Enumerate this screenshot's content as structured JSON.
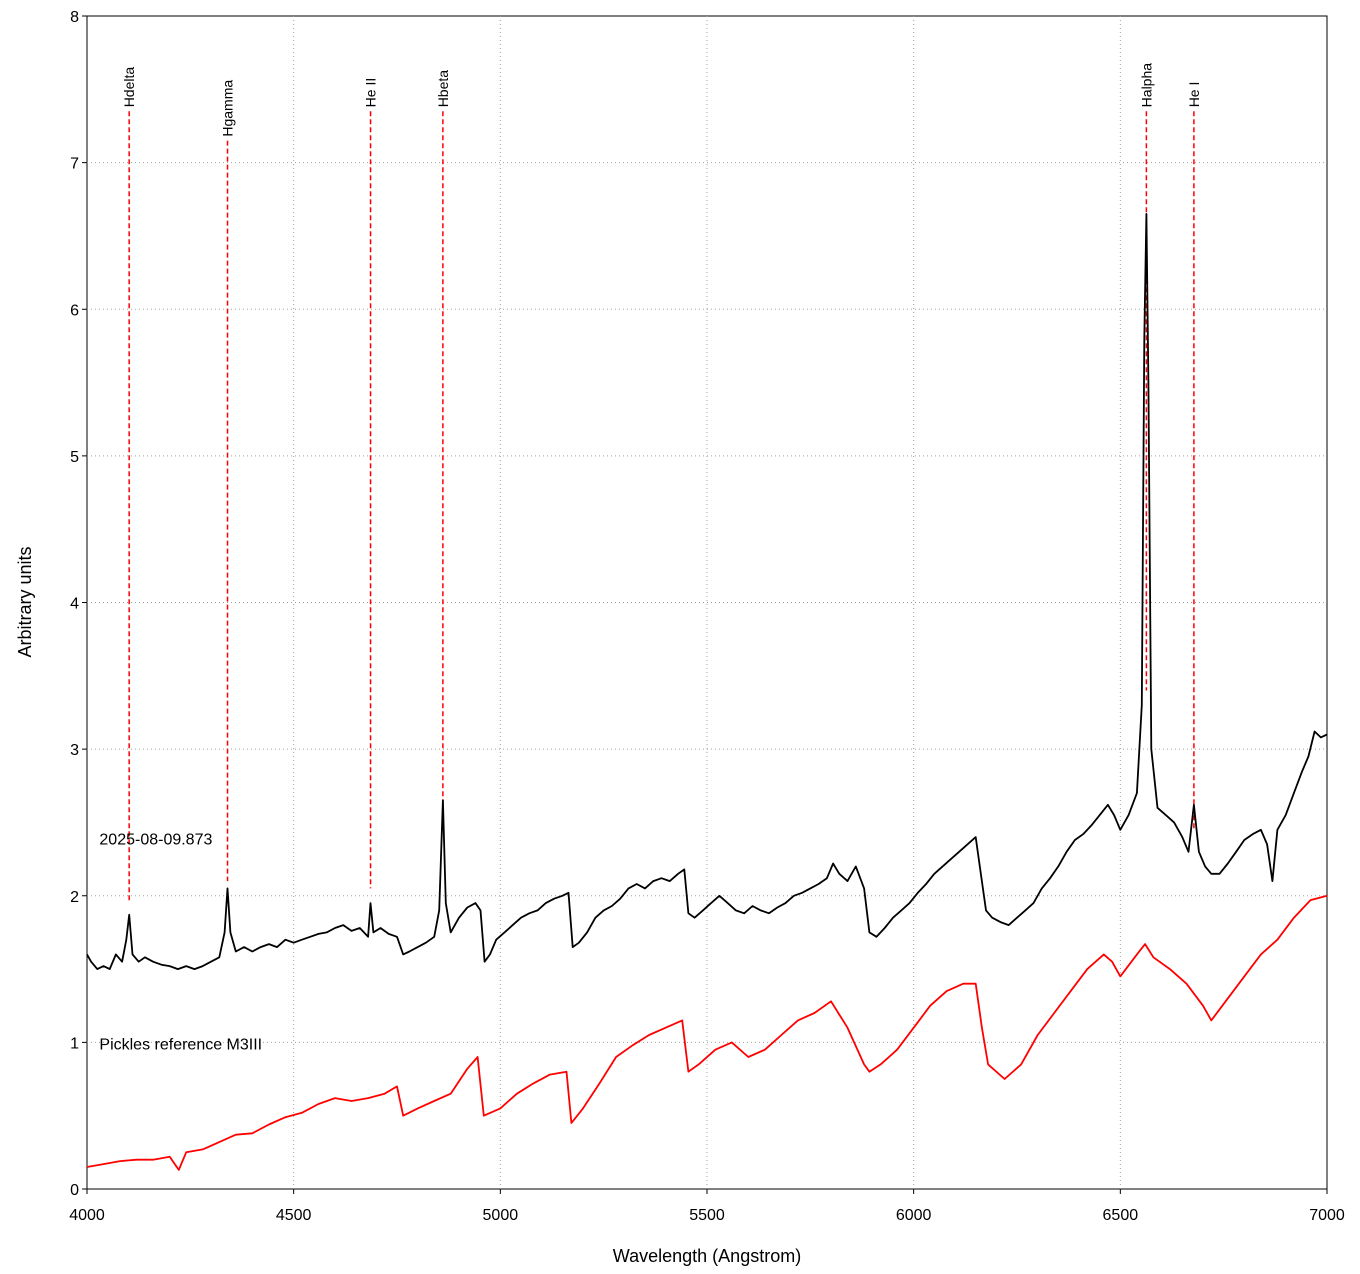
{
  "chart_data": {
    "type": "line",
    "title": "",
    "xlabel": "Wavelength (Angstrom)",
    "ylabel": "Arbitrary units",
    "xlim": [
      4000,
      7000
    ],
    "ylim": [
      0,
      8
    ],
    "x_ticks": [
      4000,
      4500,
      5000,
      5500,
      6000,
      6500,
      7000
    ],
    "y_ticks": [
      0,
      1,
      2,
      3,
      4,
      5,
      6,
      7,
      8
    ],
    "grid": true,
    "colors": {
      "observed": "#000000",
      "reference": "#ff0000",
      "lines": "#ff0000",
      "grid": "#a0a0a0"
    },
    "annotations": [
      {
        "text": "2025-08-09.873",
        "x": 4030,
        "y": 2.35
      },
      {
        "text": "Pickles reference M3III",
        "x": 4030,
        "y": 0.95
      }
    ],
    "spectral_lines": [
      {
        "label": "Hdelta",
        "wavelength": 4102,
        "y_top": 7.35,
        "y_bottom": 1.95
      },
      {
        "label": "Hgamma",
        "wavelength": 4340,
        "y_top": 7.15,
        "y_bottom": 2.1
      },
      {
        "label": "He II",
        "wavelength": 4686,
        "y_top": 7.35,
        "y_bottom": 2.05
      },
      {
        "label": "Hbeta",
        "wavelength": 4861,
        "y_top": 7.35,
        "y_bottom": 2.6
      },
      {
        "label": "Halpha",
        "wavelength": 6563,
        "y_top": 7.35,
        "y_bottom": 3.4
      },
      {
        "label": "He I",
        "wavelength": 6678,
        "y_top": 7.35,
        "y_bottom": 2.45
      }
    ],
    "series": [
      {
        "name": "2025-08-09.873",
        "color": "#000000",
        "points": [
          [
            4000,
            1.6
          ],
          [
            4010,
            1.55
          ],
          [
            4025,
            1.5
          ],
          [
            4040,
            1.52
          ],
          [
            4055,
            1.5
          ],
          [
            4070,
            1.6
          ],
          [
            4085,
            1.55
          ],
          [
            4095,
            1.7
          ],
          [
            4102,
            1.87
          ],
          [
            4110,
            1.6
          ],
          [
            4125,
            1.55
          ],
          [
            4140,
            1.58
          ],
          [
            4160,
            1.55
          ],
          [
            4180,
            1.53
          ],
          [
            4200,
            1.52
          ],
          [
            4220,
            1.5
          ],
          [
            4240,
            1.52
          ],
          [
            4260,
            1.5
          ],
          [
            4280,
            1.52
          ],
          [
            4300,
            1.55
          ],
          [
            4320,
            1.58
          ],
          [
            4333,
            1.75
          ],
          [
            4340,
            2.05
          ],
          [
            4347,
            1.75
          ],
          [
            4360,
            1.62
          ],
          [
            4380,
            1.65
          ],
          [
            4400,
            1.62
          ],
          [
            4420,
            1.65
          ],
          [
            4440,
            1.67
          ],
          [
            4460,
            1.65
          ],
          [
            4480,
            1.7
          ],
          [
            4500,
            1.68
          ],
          [
            4520,
            1.7
          ],
          [
            4540,
            1.72
          ],
          [
            4560,
            1.74
          ],
          [
            4580,
            1.75
          ],
          [
            4600,
            1.78
          ],
          [
            4620,
            1.8
          ],
          [
            4640,
            1.76
          ],
          [
            4660,
            1.78
          ],
          [
            4680,
            1.72
          ],
          [
            4686,
            1.95
          ],
          [
            4693,
            1.75
          ],
          [
            4710,
            1.78
          ],
          [
            4730,
            1.74
          ],
          [
            4750,
            1.72
          ],
          [
            4765,
            1.6
          ],
          [
            4780,
            1.62
          ],
          [
            4800,
            1.65
          ],
          [
            4820,
            1.68
          ],
          [
            4840,
            1.72
          ],
          [
            4852,
            1.9
          ],
          [
            4861,
            2.65
          ],
          [
            4868,
            1.95
          ],
          [
            4880,
            1.75
          ],
          [
            4900,
            1.85
          ],
          [
            4920,
            1.92
          ],
          [
            4940,
            1.95
          ],
          [
            4952,
            1.9
          ],
          [
            4962,
            1.55
          ],
          [
            4975,
            1.6
          ],
          [
            4990,
            1.7
          ],
          [
            5010,
            1.75
          ],
          [
            5030,
            1.8
          ],
          [
            5050,
            1.85
          ],
          [
            5070,
            1.88
          ],
          [
            5090,
            1.9
          ],
          [
            5110,
            1.95
          ],
          [
            5130,
            1.98
          ],
          [
            5150,
            2.0
          ],
          [
            5165,
            2.02
          ],
          [
            5175,
            1.65
          ],
          [
            5190,
            1.68
          ],
          [
            5210,
            1.75
          ],
          [
            5230,
            1.85
          ],
          [
            5250,
            1.9
          ],
          [
            5270,
            1.93
          ],
          [
            5290,
            1.98
          ],
          [
            5310,
            2.05
          ],
          [
            5330,
            2.08
          ],
          [
            5350,
            2.05
          ],
          [
            5370,
            2.1
          ],
          [
            5390,
            2.12
          ],
          [
            5410,
            2.1
          ],
          [
            5430,
            2.15
          ],
          [
            5445,
            2.18
          ],
          [
            5455,
            1.88
          ],
          [
            5470,
            1.85
          ],
          [
            5490,
            1.9
          ],
          [
            5510,
            1.95
          ],
          [
            5530,
            2.0
          ],
          [
            5550,
            1.95
          ],
          [
            5570,
            1.9
          ],
          [
            5590,
            1.88
          ],
          [
            5610,
            1.93
          ],
          [
            5630,
            1.9
          ],
          [
            5650,
            1.88
          ],
          [
            5670,
            1.92
          ],
          [
            5690,
            1.95
          ],
          [
            5710,
            2.0
          ],
          [
            5730,
            2.02
          ],
          [
            5750,
            2.05
          ],
          [
            5770,
            2.08
          ],
          [
            5790,
            2.12
          ],
          [
            5805,
            2.22
          ],
          [
            5820,
            2.15
          ],
          [
            5840,
            2.1
          ],
          [
            5860,
            2.2
          ],
          [
            5880,
            2.05
          ],
          [
            5893,
            1.75
          ],
          [
            5910,
            1.72
          ],
          [
            5930,
            1.78
          ],
          [
            5950,
            1.85
          ],
          [
            5970,
            1.9
          ],
          [
            5990,
            1.95
          ],
          [
            6010,
            2.02
          ],
          [
            6030,
            2.08
          ],
          [
            6050,
            2.15
          ],
          [
            6070,
            2.2
          ],
          [
            6090,
            2.25
          ],
          [
            6110,
            2.3
          ],
          [
            6130,
            2.35
          ],
          [
            6150,
            2.4
          ],
          [
            6160,
            2.2
          ],
          [
            6175,
            1.9
          ],
          [
            6190,
            1.85
          ],
          [
            6210,
            1.82
          ],
          [
            6230,
            1.8
          ],
          [
            6250,
            1.85
          ],
          [
            6270,
            1.9
          ],
          [
            6290,
            1.95
          ],
          [
            6310,
            2.05
          ],
          [
            6330,
            2.12
          ],
          [
            6350,
            2.2
          ],
          [
            6370,
            2.3
          ],
          [
            6390,
            2.38
          ],
          [
            6410,
            2.42
          ],
          [
            6430,
            2.48
          ],
          [
            6450,
            2.55
          ],
          [
            6470,
            2.62
          ],
          [
            6485,
            2.55
          ],
          [
            6500,
            2.45
          ],
          [
            6520,
            2.55
          ],
          [
            6540,
            2.7
          ],
          [
            6552,
            3.3
          ],
          [
            6558,
            5.8
          ],
          [
            6563,
            6.65
          ],
          [
            6568,
            5.5
          ],
          [
            6575,
            3.0
          ],
          [
            6590,
            2.6
          ],
          [
            6610,
            2.55
          ],
          [
            6630,
            2.5
          ],
          [
            6650,
            2.4
          ],
          [
            6665,
            2.3
          ],
          [
            6678,
            2.62
          ],
          [
            6690,
            2.3
          ],
          [
            6705,
            2.2
          ],
          [
            6720,
            2.15
          ],
          [
            6740,
            2.15
          ],
          [
            6760,
            2.22
          ],
          [
            6780,
            2.3
          ],
          [
            6800,
            2.38
          ],
          [
            6820,
            2.42
          ],
          [
            6840,
            2.45
          ],
          [
            6855,
            2.35
          ],
          [
            6868,
            2.1
          ],
          [
            6880,
            2.45
          ],
          [
            6900,
            2.55
          ],
          [
            6920,
            2.7
          ],
          [
            6940,
            2.85
          ],
          [
            6955,
            2.95
          ],
          [
            6970,
            3.12
          ],
          [
            6985,
            3.08
          ],
          [
            7000,
            3.1
          ]
        ]
      },
      {
        "name": "Pickles reference M3III",
        "color": "#ff0000",
        "points": [
          [
            4000,
            0.15
          ],
          [
            4040,
            0.17
          ],
          [
            4080,
            0.19
          ],
          [
            4120,
            0.2
          ],
          [
            4160,
            0.2
          ],
          [
            4200,
            0.22
          ],
          [
            4222,
            0.13
          ],
          [
            4240,
            0.25
          ],
          [
            4280,
            0.27
          ],
          [
            4320,
            0.32
          ],
          [
            4360,
            0.37
          ],
          [
            4400,
            0.38
          ],
          [
            4440,
            0.44
          ],
          [
            4480,
            0.49
          ],
          [
            4520,
            0.52
          ],
          [
            4560,
            0.58
          ],
          [
            4600,
            0.62
          ],
          [
            4640,
            0.6
          ],
          [
            4680,
            0.62
          ],
          [
            4720,
            0.65
          ],
          [
            4750,
            0.7
          ],
          [
            4765,
            0.5
          ],
          [
            4800,
            0.55
          ],
          [
            4840,
            0.6
          ],
          [
            4880,
            0.65
          ],
          [
            4920,
            0.82
          ],
          [
            4945,
            0.9
          ],
          [
            4960,
            0.5
          ],
          [
            5000,
            0.55
          ],
          [
            5040,
            0.65
          ],
          [
            5080,
            0.72
          ],
          [
            5120,
            0.78
          ],
          [
            5160,
            0.8
          ],
          [
            5172,
            0.45
          ],
          [
            5200,
            0.55
          ],
          [
            5240,
            0.72
          ],
          [
            5280,
            0.9
          ],
          [
            5320,
            0.98
          ],
          [
            5360,
            1.05
          ],
          [
            5400,
            1.1
          ],
          [
            5440,
            1.15
          ],
          [
            5455,
            0.8
          ],
          [
            5480,
            0.85
          ],
          [
            5520,
            0.95
          ],
          [
            5560,
            1.0
          ],
          [
            5600,
            0.9
          ],
          [
            5640,
            0.95
          ],
          [
            5680,
            1.05
          ],
          [
            5720,
            1.15
          ],
          [
            5760,
            1.2
          ],
          [
            5800,
            1.28
          ],
          [
            5840,
            1.1
          ],
          [
            5880,
            0.85
          ],
          [
            5893,
            0.8
          ],
          [
            5920,
            0.85
          ],
          [
            5960,
            0.95
          ],
          [
            6000,
            1.1
          ],
          [
            6040,
            1.25
          ],
          [
            6080,
            1.35
          ],
          [
            6120,
            1.4
          ],
          [
            6150,
            1.4
          ],
          [
            6165,
            1.1
          ],
          [
            6180,
            0.85
          ],
          [
            6220,
            0.75
          ],
          [
            6260,
            0.85
          ],
          [
            6300,
            1.05
          ],
          [
            6340,
            1.2
          ],
          [
            6380,
            1.35
          ],
          [
            6420,
            1.5
          ],
          [
            6460,
            1.6
          ],
          [
            6480,
            1.55
          ],
          [
            6500,
            1.45
          ],
          [
            6540,
            1.6
          ],
          [
            6560,
            1.67
          ],
          [
            6580,
            1.58
          ],
          [
            6620,
            1.5
          ],
          [
            6660,
            1.4
          ],
          [
            6700,
            1.25
          ],
          [
            6720,
            1.15
          ],
          [
            6760,
            1.3
          ],
          [
            6800,
            1.45
          ],
          [
            6840,
            1.6
          ],
          [
            6880,
            1.7
          ],
          [
            6920,
            1.85
          ],
          [
            6960,
            1.97
          ],
          [
            7000,
            2.0
          ]
        ]
      }
    ]
  }
}
